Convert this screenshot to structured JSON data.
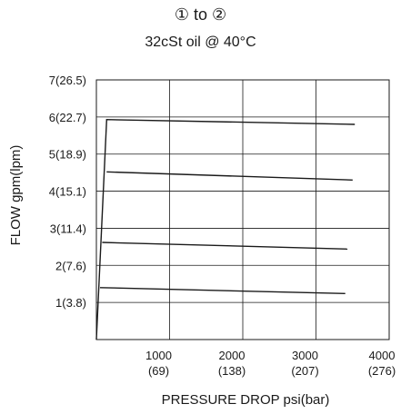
{
  "chart_data": {
    "type": "line",
    "title": "① to ②",
    "subtitle": "32cSt oil @ 40°C",
    "xlabel": "PRESSURE  DROP psi(bar)",
    "ylabel": "FLOW   gpm(lpm)",
    "xlim": [
      0,
      4000
    ],
    "ylim": [
      0,
      7
    ],
    "grid": true,
    "x_ticks": [
      {
        "value": 1000,
        "label": "1000",
        "sub": "(69)"
      },
      {
        "value": 2000,
        "label": "2000",
        "sub": "(138)"
      },
      {
        "value": 3000,
        "label": "3000",
        "sub": "(207)"
      },
      {
        "value": 4000,
        "label": "4000",
        "sub": "(276)"
      }
    ],
    "y_ticks": [
      {
        "value": 1,
        "label": "1(3.8)"
      },
      {
        "value": 2,
        "label": "2(7.6)"
      },
      {
        "value": 3,
        "label": "3(11.4)"
      },
      {
        "value": 4,
        "label": "4(15.1)"
      },
      {
        "value": 5,
        "label": "5(18.9)"
      },
      {
        "value": 6,
        "label": "6(22.7)"
      },
      {
        "value": 7,
        "label": "7(26.5)"
      }
    ],
    "series": [
      {
        "x": [
          0,
          140,
          3530
        ],
        "y": [
          0,
          5.93,
          5.8
        ]
      },
      {
        "x": [
          140,
          3500
        ],
        "y": [
          4.52,
          4.3
        ]
      },
      {
        "x": [
          80,
          3430
        ],
        "y": [
          2.62,
          2.44
        ]
      },
      {
        "x": [
          50,
          3400
        ],
        "y": [
          1.4,
          1.24
        ]
      }
    ]
  }
}
